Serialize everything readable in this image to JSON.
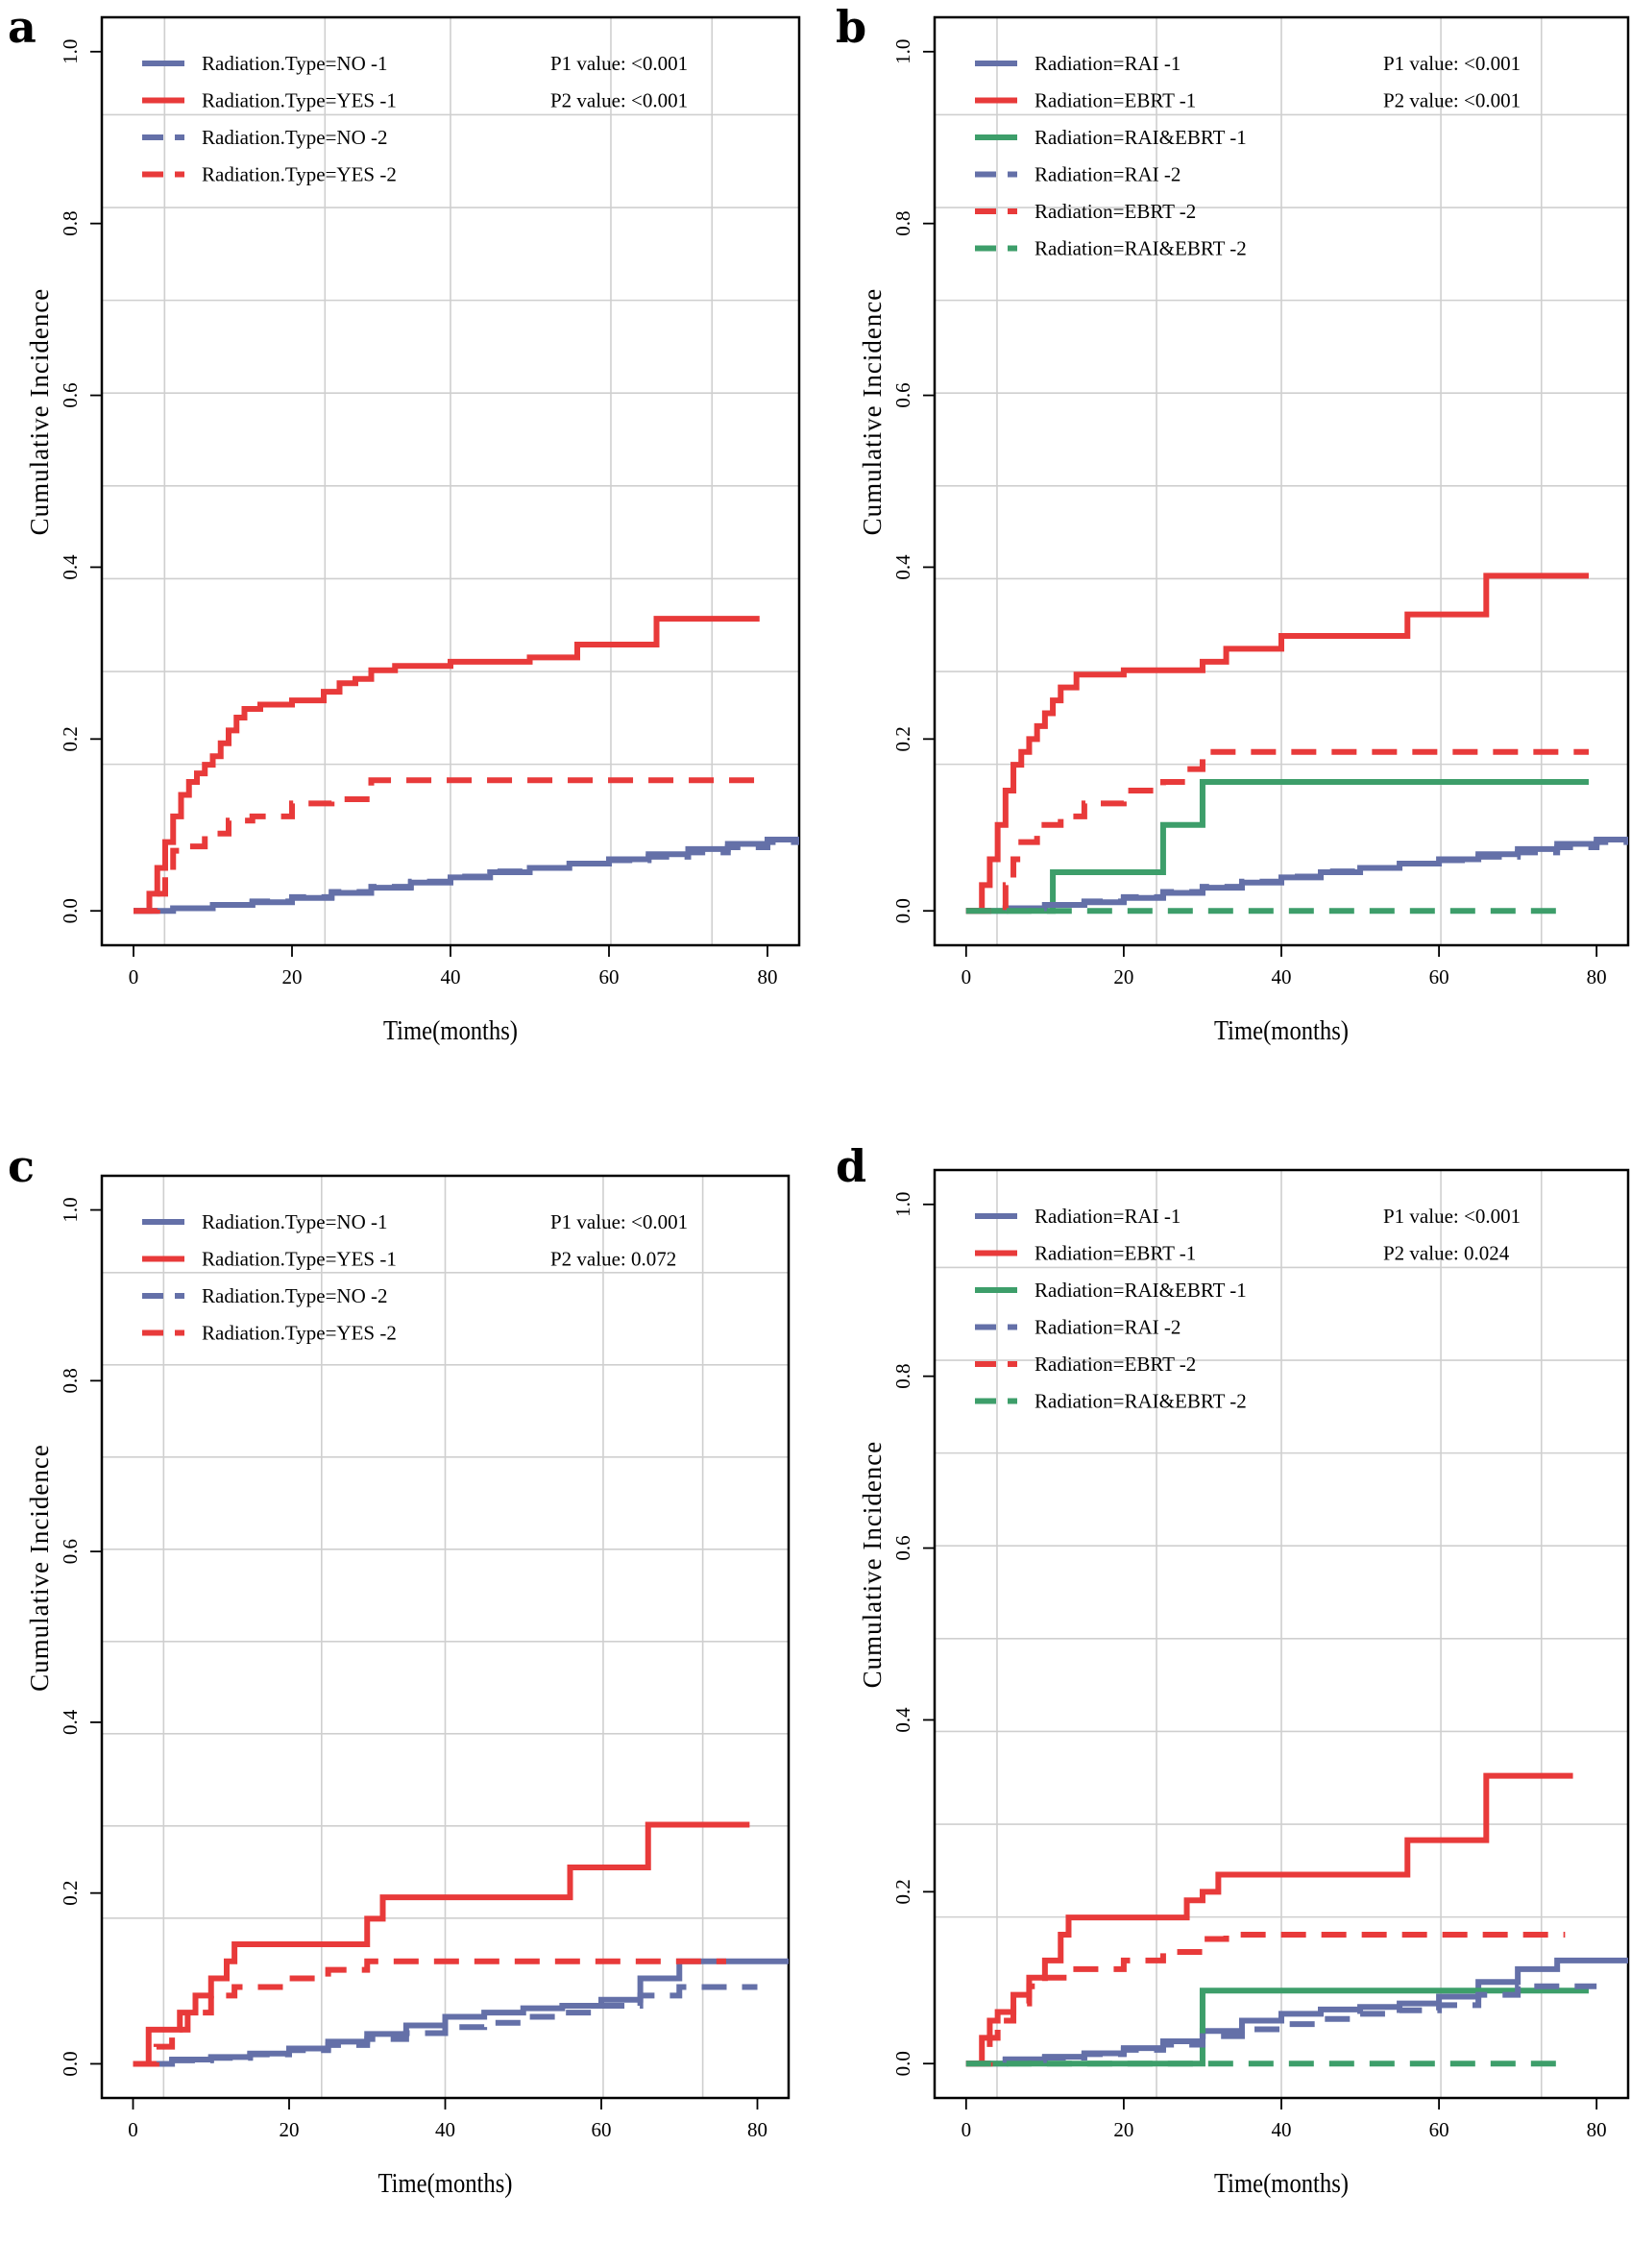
{
  "chart_data": [
    {
      "panel": "a",
      "type": "line",
      "xlabel": "Time(months)",
      "ylabel": "Cumulative Incidence",
      "xlim": [
        -4,
        84
      ],
      "ylim": [
        -0.04,
        1.04
      ],
      "xticks": [
        "0",
        "20",
        "40",
        "60",
        "80"
      ],
      "yticks": [
        "0.0",
        "0.2",
        "0.4",
        "0.6",
        "0.8",
        "1.0"
      ],
      "grid": "on",
      "legend": "top-left",
      "pvalues": [
        "P1 value: <0.001",
        "P2 value: <0.001"
      ],
      "series": [
        {
          "name": "Radiation.Type=NO -1",
          "color": "#6470a8",
          "dash": "solid",
          "x": [
            0,
            5,
            10,
            15,
            20,
            25,
            30,
            35,
            40,
            45,
            50,
            55,
            60,
            65,
            70,
            75,
            80,
            84
          ],
          "y": [
            0,
            0.003,
            0.007,
            0.01,
            0.015,
            0.021,
            0.027,
            0.033,
            0.039,
            0.045,
            0.05,
            0.055,
            0.06,
            0.066,
            0.072,
            0.078,
            0.083,
            0.083
          ]
        },
        {
          "name": "Radiation.Type=YES -1",
          "color": "#e83a3a",
          "dash": "solid",
          "x": [
            0,
            2,
            3,
            4,
            5,
            6,
            7,
            8,
            9,
            10,
            11,
            12,
            13,
            14,
            16,
            18,
            20,
            22,
            24,
            26,
            28,
            30,
            33,
            40,
            50,
            56,
            66,
            79
          ],
          "y": [
            0,
            0.02,
            0.05,
            0.08,
            0.11,
            0.135,
            0.15,
            0.16,
            0.17,
            0.18,
            0.195,
            0.21,
            0.225,
            0.235,
            0.24,
            0.24,
            0.245,
            0.245,
            0.255,
            0.265,
            0.27,
            0.28,
            0.285,
            0.29,
            0.295,
            0.31,
            0.34,
            0.34
          ]
        },
        {
          "name": "Radiation.Type=NO -2",
          "color": "#6470a8",
          "dash": "dashed",
          "x": [
            0,
            5,
            10,
            15,
            20,
            25,
            30,
            35,
            40,
            45,
            50,
            55,
            60,
            65,
            70,
            75,
            80,
            84
          ],
          "y": [
            0,
            0.003,
            0.007,
            0.011,
            0.016,
            0.022,
            0.028,
            0.034,
            0.04,
            0.046,
            0.05,
            0.055,
            0.059,
            0.063,
            0.068,
            0.074,
            0.08,
            0.08
          ]
        },
        {
          "name": "Radiation.Type=YES -2",
          "color": "#e83a3a",
          "dash": "dashed",
          "x": [
            0,
            3,
            4,
            5,
            7,
            9,
            12,
            15,
            20,
            25,
            30,
            79
          ],
          "y": [
            0,
            0.02,
            0.04,
            0.07,
            0.075,
            0.09,
            0.105,
            0.11,
            0.125,
            0.13,
            0.152,
            0.152
          ]
        }
      ]
    },
    {
      "panel": "b",
      "type": "line",
      "xlabel": "Time(months)",
      "ylabel": "Cumulative Incidence",
      "xlim": [
        -4,
        84
      ],
      "ylim": [
        -0.04,
        1.04
      ],
      "xticks": [
        "0",
        "20",
        "40",
        "60",
        "80"
      ],
      "yticks": [
        "0.0",
        "0.2",
        "0.4",
        "0.6",
        "0.8",
        "1.0"
      ],
      "grid": "on",
      "legend": "top-left",
      "pvalues": [
        "P1 value: <0.001",
        "P2 value: <0.001"
      ],
      "series": [
        {
          "name": "Radiation=RAI -1",
          "color": "#6470a8",
          "dash": "solid",
          "x": [
            0,
            5,
            10,
            15,
            20,
            25,
            30,
            35,
            40,
            45,
            50,
            55,
            60,
            65,
            70,
            75,
            80,
            84
          ],
          "y": [
            0,
            0.003,
            0.007,
            0.01,
            0.015,
            0.021,
            0.027,
            0.033,
            0.039,
            0.045,
            0.05,
            0.055,
            0.06,
            0.066,
            0.072,
            0.078,
            0.083,
            0.083
          ]
        },
        {
          "name": "Radiation=EBRT -1",
          "color": "#e83a3a",
          "dash": "solid",
          "x": [
            0,
            2,
            3,
            4,
            5,
            6,
            7,
            8,
            9,
            10,
            11,
            12,
            14,
            20,
            25,
            30,
            33,
            40,
            50,
            56,
            66,
            79
          ],
          "y": [
            0,
            0.03,
            0.06,
            0.1,
            0.14,
            0.17,
            0.185,
            0.2,
            0.215,
            0.23,
            0.245,
            0.26,
            0.275,
            0.28,
            0.28,
            0.29,
            0.305,
            0.32,
            0.32,
            0.345,
            0.39,
            0.39
          ]
        },
        {
          "name": "Radiation=RAI&EBRT -1",
          "color": "#3d9e6a",
          "dash": "solid",
          "x": [
            0,
            11,
            25,
            30,
            79
          ],
          "y": [
            0,
            0.045,
            0.1,
            0.15,
            0.15
          ]
        },
        {
          "name": "Radiation=RAI -2",
          "color": "#6470a8",
          "dash": "dashed",
          "x": [
            0,
            5,
            10,
            15,
            20,
            25,
            30,
            35,
            40,
            45,
            50,
            55,
            60,
            65,
            70,
            75,
            80,
            84
          ],
          "y": [
            0,
            0.003,
            0.007,
            0.011,
            0.016,
            0.022,
            0.028,
            0.034,
            0.04,
            0.046,
            0.05,
            0.055,
            0.059,
            0.063,
            0.068,
            0.074,
            0.08,
            0.08
          ]
        },
        {
          "name": "Radiation=EBRT -2",
          "color": "#e83a3a",
          "dash": "dashed",
          "x": [
            0,
            5,
            6,
            7,
            9,
            12,
            15,
            20,
            25,
            28,
            30,
            79
          ],
          "y": [
            0,
            0.03,
            0.06,
            0.08,
            0.1,
            0.11,
            0.125,
            0.14,
            0.15,
            0.165,
            0.185,
            0.185
          ]
        },
        {
          "name": "Radiation=RAI&EBRT -2",
          "color": "#3d9e6a",
          "dash": "dashed",
          "x": [
            0,
            75
          ],
          "y": [
            0,
            0
          ]
        }
      ]
    },
    {
      "panel": "c",
      "type": "line",
      "xlabel": "Time(months)",
      "ylabel": "Cumulative Incidence",
      "xlim": [
        -4,
        84
      ],
      "ylim": [
        -0.04,
        1.04
      ],
      "xticks": [
        "0",
        "20",
        "40",
        "60",
        "80"
      ],
      "yticks": [
        "0.0",
        "0.2",
        "0.4",
        "0.6",
        "0.8",
        "1.0"
      ],
      "grid": "on",
      "legend": "top-left",
      "pvalues": [
        "P1 value: <0.001",
        "P2 value: 0.072"
      ],
      "series": [
        {
          "name": "Radiation.Type=NO -1",
          "color": "#6470a8",
          "dash": "solid",
          "x": [
            0,
            5,
            10,
            15,
            20,
            25,
            30,
            35,
            40,
            45,
            50,
            55,
            60,
            65,
            70,
            75,
            80,
            84
          ],
          "y": [
            0,
            0.005,
            0.008,
            0.012,
            0.018,
            0.026,
            0.035,
            0.045,
            0.055,
            0.06,
            0.065,
            0.068,
            0.075,
            0.1,
            0.12,
            0.12,
            0.12,
            0.12
          ]
        },
        {
          "name": "Radiation.Type=YES -1",
          "color": "#e83a3a",
          "dash": "solid",
          "x": [
            0,
            2,
            4,
            6,
            8,
            10,
            12,
            13,
            30,
            32,
            56,
            66,
            79
          ],
          "y": [
            0,
            0.04,
            0.04,
            0.06,
            0.08,
            0.1,
            0.12,
            0.14,
            0.17,
            0.195,
            0.23,
            0.28,
            0.28
          ]
        },
        {
          "name": "Radiation.Type=NO -2",
          "color": "#6470a8",
          "dash": "dashed",
          "x": [
            0,
            5,
            10,
            15,
            20,
            25,
            30,
            35,
            40,
            45,
            50,
            55,
            60,
            65,
            70,
            75,
            80
          ],
          "y": [
            0,
            0.004,
            0.007,
            0.011,
            0.016,
            0.022,
            0.029,
            0.036,
            0.043,
            0.048,
            0.055,
            0.06,
            0.068,
            0.08,
            0.09,
            0.09,
            0.09
          ]
        },
        {
          "name": "Radiation.Type=YES -2",
          "color": "#e83a3a",
          "dash": "dashed",
          "x": [
            0,
            3,
            5,
            7,
            10,
            13,
            20,
            25,
            30,
            76
          ],
          "y": [
            0,
            0.02,
            0.04,
            0.06,
            0.08,
            0.09,
            0.1,
            0.11,
            0.12,
            0.12
          ]
        }
      ]
    },
    {
      "panel": "d",
      "type": "line",
      "xlabel": "Time(months)",
      "ylabel": "Cumulative Incidence",
      "xlim": [
        -4,
        84
      ],
      "ylim": [
        -0.04,
        1.04
      ],
      "xticks": [
        "0",
        "20",
        "40",
        "60",
        "80"
      ],
      "yticks": [
        "0.0",
        "0.2",
        "0.4",
        "0.6",
        "0.8",
        "1.0"
      ],
      "grid": "on",
      "legend": "top-left",
      "pvalues": [
        "P1 value: <0.001",
        "P2 value: 0.024"
      ],
      "series": [
        {
          "name": "Radiation=RAI -1",
          "color": "#6470a8",
          "dash": "solid",
          "x": [
            0,
            5,
            10,
            15,
            20,
            25,
            30,
            35,
            40,
            45,
            50,
            55,
            60,
            65,
            70,
            75,
            80,
            84
          ],
          "y": [
            0,
            0.005,
            0.008,
            0.012,
            0.018,
            0.026,
            0.038,
            0.05,
            0.058,
            0.063,
            0.066,
            0.07,
            0.078,
            0.095,
            0.11,
            0.12,
            0.12,
            0.12
          ]
        },
        {
          "name": "Radiation=EBRT -1",
          "color": "#e83a3a",
          "dash": "solid",
          "x": [
            0,
            2,
            3,
            4,
            6,
            8,
            10,
            12,
            13,
            28,
            30,
            32,
            56,
            66,
            77
          ],
          "y": [
            0,
            0.03,
            0.05,
            0.06,
            0.08,
            0.1,
            0.12,
            0.15,
            0.17,
            0.19,
            0.2,
            0.22,
            0.26,
            0.335,
            0.335
          ]
        },
        {
          "name": "Radiation=RAI&EBRT -1",
          "color": "#3d9e6a",
          "dash": "solid",
          "x": [
            0,
            30,
            62,
            79
          ],
          "y": [
            0,
            0.085,
            0.085,
            0.085
          ]
        },
        {
          "name": "Radiation=RAI -2",
          "color": "#6470a8",
          "dash": "dashed",
          "x": [
            0,
            5,
            10,
            15,
            20,
            25,
            30,
            35,
            40,
            45,
            50,
            55,
            60,
            65,
            70,
            75,
            80
          ],
          "y": [
            0,
            0.004,
            0.007,
            0.011,
            0.016,
            0.022,
            0.032,
            0.04,
            0.046,
            0.052,
            0.058,
            0.062,
            0.068,
            0.08,
            0.09,
            0.09,
            0.09
          ]
        },
        {
          "name": "Radiation=EBRT -2",
          "color": "#e83a3a",
          "dash": "dashed",
          "x": [
            0,
            3,
            4,
            6,
            8,
            10,
            13,
            20,
            25,
            30,
            33,
            76
          ],
          "y": [
            0,
            0.03,
            0.05,
            0.07,
            0.09,
            0.1,
            0.11,
            0.12,
            0.13,
            0.145,
            0.15,
            0.15
          ]
        },
        {
          "name": "Radiation=RAI&EBRT -2",
          "color": "#3d9e6a",
          "dash": "dashed",
          "x": [
            0,
            76
          ],
          "y": [
            0,
            0
          ]
        }
      ]
    }
  ]
}
